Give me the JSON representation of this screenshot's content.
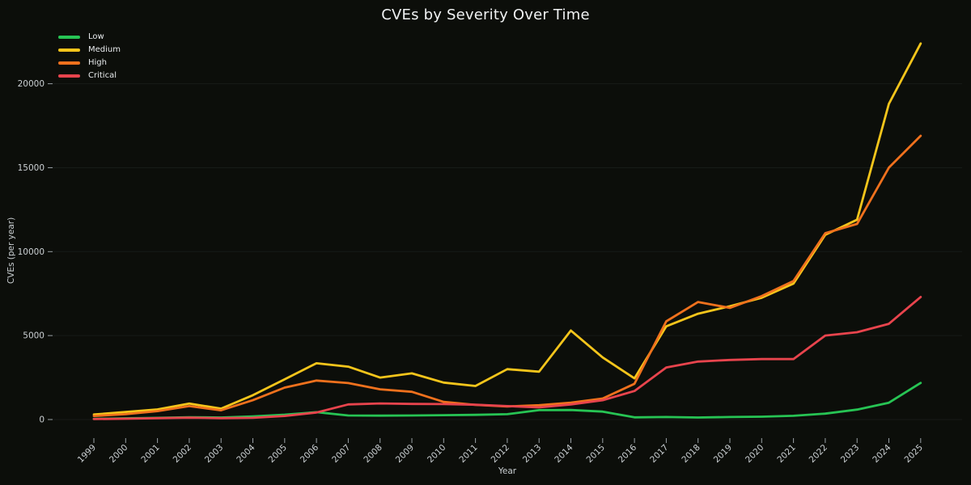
{
  "title": "CVEs by Severity Over Time",
  "chart_data": {
    "type": "line",
    "title": "CVEs by Severity Over Time",
    "xlabel": "Year",
    "ylabel": "CVEs (per year)",
    "x": [
      1999,
      2000,
      2001,
      2002,
      2003,
      2004,
      2005,
      2006,
      2007,
      2008,
      2009,
      2010,
      2011,
      2012,
      2013,
      2014,
      2015,
      2016,
      2017,
      2018,
      2019,
      2020,
      2021,
      2022,
      2023,
      2024,
      2025
    ],
    "y_ticks": [
      0,
      5000,
      10000,
      15000,
      20000
    ],
    "ylim": [
      0,
      22500
    ],
    "grid": "horizontal",
    "legend_position": "upper-left",
    "x_tick_rotation": 45,
    "background_color": "#0c0e0a",
    "gridline_color": "#171b18",
    "tick_color": "#9aa1a6",
    "text_color": "#ccd1d4",
    "series": [
      {
        "name": "Low",
        "color": "#27c454",
        "values": [
          40,
          70,
          100,
          140,
          120,
          190,
          290,
          440,
          240,
          230,
          240,
          260,
          280,
          320,
          560,
          570,
          470,
          130,
          150,
          120,
          150,
          170,
          220,
          350,
          590,
          1000,
          2180
        ]
      },
      {
        "name": "Medium",
        "color": "#f5c51b",
        "values": [
          300,
          450,
          600,
          950,
          650,
          1450,
          2400,
          3350,
          3150,
          2500,
          2750,
          2200,
          2000,
          3000,
          2850,
          5300,
          3700,
          2450,
          5550,
          6300,
          6750,
          7250,
          8100,
          11000,
          11900,
          18800,
          22400
        ]
      },
      {
        "name": "High",
        "color": "#f0711d",
        "values": [
          210,
          320,
          500,
          800,
          550,
          1150,
          1900,
          2320,
          2170,
          1800,
          1650,
          1050,
          870,
          780,
          850,
          1000,
          1250,
          2130,
          5850,
          7000,
          6650,
          7350,
          8250,
          11100,
          11650,
          15000,
          16900
        ]
      },
      {
        "name": "Critical",
        "color": "#e8444d",
        "values": [
          30,
          50,
          80,
          110,
          80,
          100,
          210,
          420,
          900,
          960,
          930,
          920,
          880,
          800,
          720,
          900,
          1150,
          1700,
          3100,
          3450,
          3550,
          3600,
          3600,
          5000,
          5200,
          5700,
          7300
        ]
      }
    ]
  }
}
